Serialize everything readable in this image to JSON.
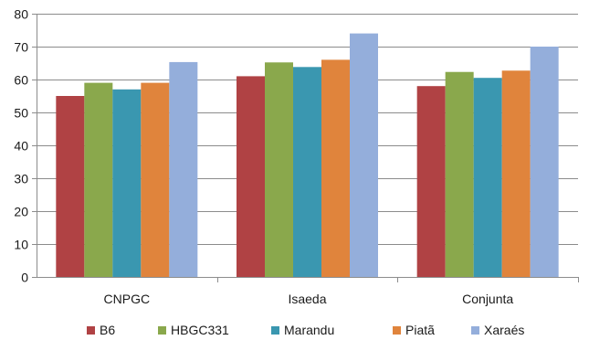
{
  "chart_data": {
    "type": "bar",
    "categories": [
      "CNPGC",
      "Isaeda",
      "Conjunta"
    ],
    "series": [
      {
        "name": "B6",
        "color": "#b04244",
        "values": [
          55,
          61,
          58
        ]
      },
      {
        "name": "HBGC331",
        "color": "#8aa84c",
        "values": [
          59,
          65.2,
          62.3
        ]
      },
      {
        "name": "Marandu",
        "color": "#3a97b0",
        "values": [
          57,
          63.8,
          60.5
        ]
      },
      {
        "name": "Piatã",
        "color": "#e0843c",
        "values": [
          59,
          66,
          62.7
        ]
      },
      {
        "name": "Xaraés",
        "color": "#94aedb",
        "values": [
          65.3,
          74,
          70
        ]
      }
    ],
    "ylim": [
      0,
      80
    ],
    "yticks": [
      0,
      10,
      20,
      30,
      40,
      50,
      60,
      70,
      80
    ],
    "grid": true,
    "legend": "bottom",
    "title": "",
    "xlabel": "",
    "ylabel": ""
  }
}
